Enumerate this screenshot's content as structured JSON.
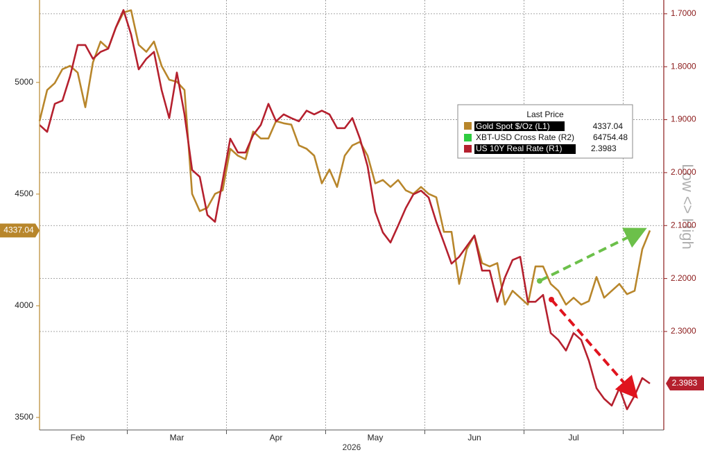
{
  "chart_data": {
    "type": "line",
    "x_label": "2026",
    "categories": [
      null,
      null,
      null,
      null,
      null,
      "Feb",
      null,
      null,
      null,
      null,
      null,
      null,
      null,
      null,
      null,
      null,
      null,
      null,
      "Mar",
      null,
      null,
      null,
      null,
      null,
      null,
      null,
      null,
      null,
      null,
      null,
      null,
      "Apr",
      null,
      null,
      null,
      null,
      null,
      null,
      null,
      null,
      null,
      null,
      null,
      null,
      "May",
      null,
      null,
      null,
      null,
      null,
      null,
      null,
      null,
      null,
      null,
      null,
      null,
      "Jun",
      null,
      null,
      null,
      null,
      null,
      null,
      null,
      null,
      null,
      null,
      null,
      null,
      "Jul",
      null,
      null,
      null,
      null,
      null,
      null,
      null,
      null,
      null,
      null
    ],
    "series": [
      {
        "name": "Gold Spot $/Oz  (L1)",
        "color": "#b8862b",
        "axis": "y",
        "values": [
          4827,
          4966,
          4997,
          5059,
          5074,
          5044,
          4889,
          5090,
          5183,
          5152,
          5245,
          5313,
          5323,
          5168,
          5137,
          5183,
          5074,
          5012,
          5003,
          4966,
          4501,
          4424,
          4439,
          4501,
          4517,
          4703,
          4672,
          4656,
          4780,
          4749,
          4749,
          4827,
          4817,
          4811,
          4718,
          4703,
          4672,
          4548,
          4610,
          4532,
          4672,
          4718,
          4734,
          4672,
          4548,
          4563,
          4532,
          4563,
          4517,
          4501,
          4532,
          4501,
          4486,
          4331,
          4331,
          4098,
          4253,
          4315,
          4191,
          4176,
          4191,
          4005,
          4067,
          4036,
          4005,
          4176,
          4176,
          4098,
          4067,
          4005,
          4036,
          4005,
          4021,
          4129,
          4036,
          4067,
          4098,
          4052,
          4067,
          4253,
          4337.04
        ]
      },
      {
        "name": "US 10Y Real Rate  (R1)",
        "color": "#b5202e",
        "axis": "y2",
        "values": [
          1.91,
          1.923,
          1.87,
          1.864,
          1.818,
          1.759,
          1.759,
          1.785,
          1.772,
          1.766,
          1.726,
          1.693,
          1.739,
          1.805,
          1.785,
          1.772,
          1.844,
          1.897,
          1.811,
          1.89,
          1.995,
          2.008,
          2.08,
          2.093,
          2.015,
          1.936,
          1.962,
          1.962,
          1.929,
          1.91,
          1.87,
          1.903,
          1.89,
          1.897,
          1.903,
          1.883,
          1.89,
          1.883,
          1.89,
          1.916,
          1.916,
          1.897,
          1.936,
          1.988,
          2.074,
          2.113,
          2.132,
          2.1,
          2.067,
          2.041,
          2.034,
          2.047,
          2.093,
          2.132,
          2.172,
          2.159,
          2.139,
          2.119,
          2.185,
          2.185,
          2.244,
          2.198,
          2.165,
          2.159,
          2.244,
          2.244,
          2.231,
          2.303,
          2.316,
          2.336,
          2.303,
          2.316,
          2.355,
          2.407,
          2.427,
          2.44,
          2.407,
          2.447,
          2.421,
          2.388,
          2.3983
        ]
      }
    ],
    "legend_title": "Last Price",
    "legend_extra": [
      {
        "name": "XBT-USD Cross Rate  (R2)",
        "color": "#2ecc40",
        "last_price": 64754.48
      }
    ],
    "ylim": [
      3444,
      5369
    ],
    "yticks": [
      3500,
      4000,
      4500,
      5000
    ],
    "y2lim": [
      1.674,
      2.486
    ],
    "y2_inverted": true,
    "y2ticks": [
      {
        "value": 1.7,
        "label": "1.7000"
      },
      {
        "value": 1.8,
        "label": "1.8000"
      },
      {
        "value": 1.9,
        "label": "1.9000"
      },
      {
        "value": 2.0,
        "label": "2.0000"
      },
      {
        "value": 2.1,
        "label": "2.1000"
      },
      {
        "value": 2.2,
        "label": "2.2000"
      },
      {
        "value": 2.3,
        "label": "2.3000"
      }
    ],
    "grid": true,
    "annotations": [
      "Low <> High"
    ]
  }
}
